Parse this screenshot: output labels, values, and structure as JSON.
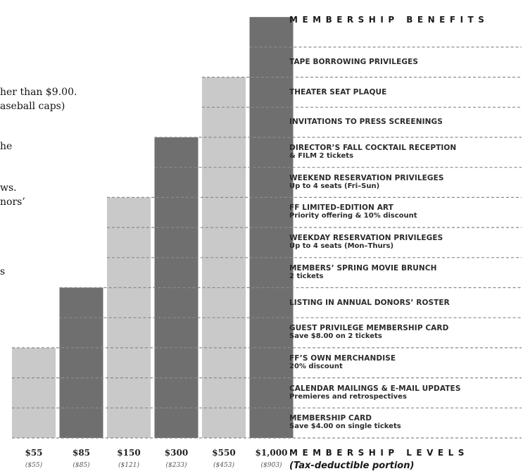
{
  "left_text": [
    "her than $9.00.",
    "aseball caps)",
    "he",
    "ws.",
    "nors’",
    "s"
  ],
  "header": "MEMBERSHIP BENEFITS",
  "footer_title": "MEMBERSHIP LEVELS",
  "footer_subtitle": "(Tax-deductible portion)",
  "colors": {
    "light_bar": "#c9c9c9",
    "dark_bar": "#6f6f6f",
    "dashed_line": "#8a8a8a",
    "text": "#2b2b2b"
  },
  "chart_data": {
    "type": "bar",
    "categories": [
      "$55",
      "$85",
      "$150",
      "$300",
      "$550",
      "$1,000"
    ],
    "tax_deductible": [
      "($55)",
      "($85)",
      "($121)",
      "($233)",
      "($453)",
      "($903)"
    ],
    "values": [
      3,
      5,
      8,
      10,
      12,
      14
    ],
    "value_meaning": "number of membership benefits included (cumulative from bottom)",
    "bar_shades": [
      "light",
      "dark",
      "light",
      "dark",
      "light",
      "dark"
    ],
    "xlabel": "MEMBERSHIP LEVELS",
    "ylabel": "MEMBERSHIP BENEFITS",
    "benefits_top_to_bottom": [
      {
        "title": "TAPE BORROWING PRIVILEGES",
        "sub": ""
      },
      {
        "title": "THEATER SEAT PLAQUE",
        "sub": ""
      },
      {
        "title": "INVITATIONS TO PRESS SCREENINGS",
        "sub": ""
      },
      {
        "title": "DIRECTOR’S FALL COCKTAIL RECEPTION",
        "sub": "& FILM  2 tickets"
      },
      {
        "title": "WEEKEND RESERVATION PRIVILEGES",
        "sub": "Up to 4 seats (Fri–Sun)"
      },
      {
        "title": "FF LIMITED-EDITION ART",
        "sub": "Priority offering & 10% discount"
      },
      {
        "title": "WEEKDAY RESERVATION PRIVILEGES",
        "sub": "Up to 4 seats (Mon–Thurs)"
      },
      {
        "title": "MEMBERS’ SPRING MOVIE BRUNCH",
        "sub": "2 tickets"
      },
      {
        "title": "LISTING IN ANNUAL DONORS’ ROSTER",
        "sub": ""
      },
      {
        "title": "GUEST PRIVILEGE MEMBERSHIP CARD",
        "sub": "Save $8.00 on 2 tickets"
      },
      {
        "title": "FF’S OWN MERCHANDISE",
        "sub": "20% discount"
      },
      {
        "title": "CALENDAR MAILINGS & E-MAIL UPDATES",
        "sub": "Premieres and retrospectives"
      },
      {
        "title": "MEMBERSHIP CARD",
        "sub": "Save $4.00 on single tickets"
      }
    ]
  }
}
